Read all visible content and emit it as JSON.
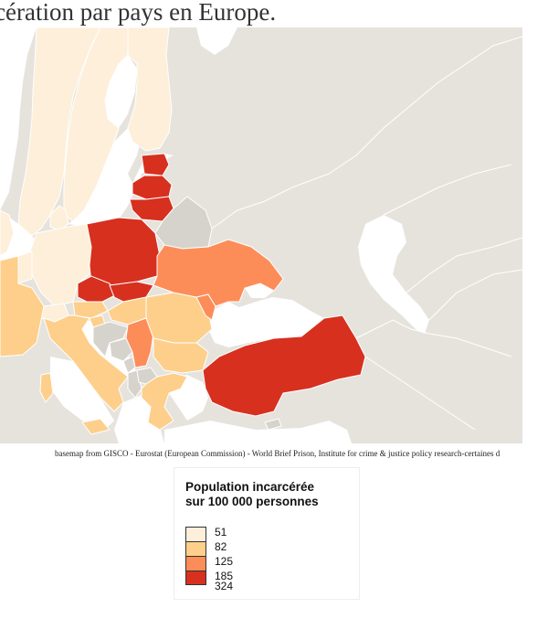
{
  "title": "cération par pays en Europe.",
  "credits": "basemap from GISCO - Eurostat (European Commission) - World Brief Prison, Institute for crime & justice policy research-certaines d",
  "legend": {
    "title_line1": "Population incarcérée",
    "title_line2": "sur 100 000 personnes",
    "classes": [
      {
        "value": "51",
        "color": "#fdefda"
      },
      {
        "value": "82",
        "color": "#fdcf8b"
      },
      {
        "value": "125",
        "color": "#fc8d59"
      },
      {
        "value": "185",
        "color": "#d7301f"
      },
      {
        "value": "324",
        "color": "#d7301f"
      }
    ]
  },
  "map": {
    "background_color": "#e6e3dd",
    "sea_color": "#ffffff",
    "border_color": "#ffffff"
  }
}
